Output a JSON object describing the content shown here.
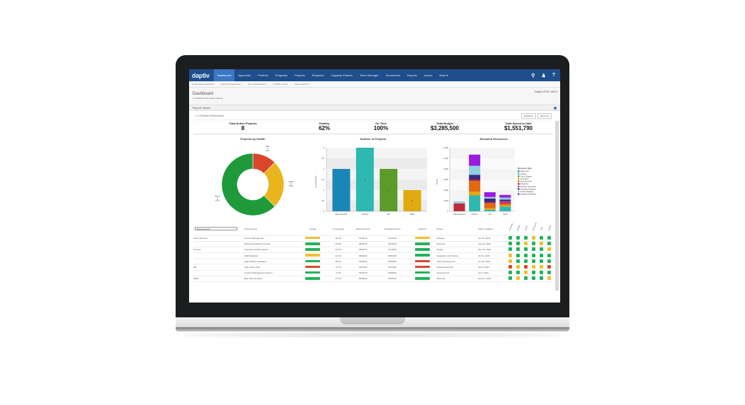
{
  "nav": {
    "logo": "daptiv",
    "items": [
      "Dashboard",
      "Approvals",
      "Portfolio",
      "Programs",
      "Projects",
      "Requests",
      "Capacity Planner",
      "Team Manager",
      "Documents",
      "Reports",
      "Issues",
      "More ▾"
    ],
    "active": "Dashboard",
    "icons": {
      "search": "⚲",
      "user": "♟",
      "help": "?"
    }
  },
  "subnav": [
    "Create New Dashboard",
    "Edit PPD Dashboard",
    "More Dashboards ▾",
    "Publish to Role",
    "Page Options ▾"
  ],
  "header": {
    "title": "Dashboard",
    "breadcrumb": "1. Portfolio Performance Metrics",
    "org": "Daptiv ERG 18/19"
  },
  "report_viewer": {
    "label": "Report Viewer"
  },
  "report": {
    "name": "1 Portfolio Performance",
    "reload_label": "Reload ⟳",
    "view_label": "View in ▾"
  },
  "kpis": [
    {
      "label": "Total Active Projects",
      "value": "8"
    },
    {
      "label": "Healthy",
      "value": "62%"
    },
    {
      "label": "On Time",
      "value": "100%"
    },
    {
      "label": "Total Budget",
      "value": "$3,285,500"
    },
    {
      "label": "Total Spend to Date",
      "value": "$1,551,790"
    }
  ],
  "chart_data": [
    {
      "type": "pie",
      "title": "Projects by Health",
      "categories": [
        "Red",
        "Yellow",
        "Green"
      ],
      "values": [
        1,
        2,
        5
      ],
      "percentages": [
        "12%",
        "25%",
        "62%"
      ],
      "colors": [
        "#d9472b",
        "#e8b51c",
        "#1f9a3a"
      ],
      "donut": true
    },
    {
      "type": "bar",
      "title": "Number of Projects",
      "categories": [
        "Client Services",
        "Finance",
        "HR",
        "Sales"
      ],
      "values": [
        2,
        3,
        2,
        1
      ],
      "colors": [
        "#1a86b8",
        "#2db8b0",
        "#5c9a2a",
        "#e0aa10"
      ],
      "ylabel": "# of Projects",
      "yticks": [
        0,
        0.5,
        1,
        1.5,
        2,
        2.5,
        3
      ],
      "ylim": [
        0,
        3
      ],
      "grid": true
    },
    {
      "type": "bar",
      "stacked": true,
      "title": "Allocated Resources",
      "ylabel": "Hours",
      "yticks": [
        0,
        1000,
        2000,
        3000,
        4000,
        5000,
        6000
      ],
      "ylim": [
        0,
        6000
      ],
      "categories": [
        "Client Services",
        "Finance",
        "HR",
        "Sales"
      ],
      "legend_title": "Resource Type",
      "legend_position": "right",
      "series": [
        {
          "name": "Agile Team",
          "color": "#1a86b8",
          "values": [
            0,
            0,
            0,
            0
          ]
        },
        {
          "name": "Analyst",
          "color": "#2db8b0",
          "values": [
            0,
            1500,
            150,
            450
          ]
        },
        {
          "name": "Client Support",
          "color": "#5c9a2a",
          "values": [
            0,
            0,
            0,
            0
          ]
        },
        {
          "name": "Contractor",
          "color": "#e0aa10",
          "values": [
            0,
            350,
            150,
            120
          ]
        },
        {
          "name": "Data Scientist",
          "color": "#e06a10",
          "values": [
            0,
            1000,
            450,
            150
          ]
        },
        {
          "name": "Designers",
          "color": "#c02a3a",
          "values": [
            750,
            150,
            100,
            120
          ]
        },
        {
          "name": "Portfolio Technician",
          "color": "#b03aa0",
          "values": [
            0,
            0,
            0,
            130
          ]
        },
        {
          "name": "Hardware Engineer",
          "color": "#3a2a80",
          "values": [
            0,
            450,
            350,
            130
          ]
        },
        {
          "name": "Project Manager",
          "color": "#8fd0e0",
          "values": [
            200,
            850,
            150,
            200
          ]
        },
        {
          "name": "Software Developer",
          "color": "#9a1ae0",
          "values": [
            0,
            1050,
            450,
            250
          ]
        }
      ]
    }
  ],
  "table": {
    "filter_value": "Business Unit",
    "columns": [
      "Project Name",
      "Health",
      "% Complete",
      "Planned Finish",
      "Scheduled Finish",
      "Variance",
      "Phase",
      "Status Updated"
    ],
    "status_columns": [
      "Schedule",
      "Budget",
      "Scope",
      "Resources",
      "Risk",
      "Quality"
    ],
    "groups": [
      {
        "name": "Client Services",
        "row": 0
      },
      {
        "name": "Finance",
        "row": 2
      },
      {
        "name": "HR",
        "row": 5
      },
      {
        "name": "Sales",
        "row": 7
      }
    ],
    "rows": [
      {
        "group": "Client Services",
        "project": "Vendor Management",
        "health": "yellow",
        "complete": "39.4%",
        "planned": "07/26/19",
        "scheduled": "07/25/19",
        "variance": "yellow",
        "phase": "Release",
        "updated": "Jun 10, 2019",
        "status": [
          "g",
          "g",
          "g",
          "y",
          "g",
          "g"
        ]
      },
      {
        "group": "",
        "project": "Business Relations Process",
        "health": "green",
        "complete": "52.8%",
        "planned": "08/26/19",
        "scheduled": "08/18/19",
        "variance": "green",
        "phase": "Planning",
        "updated": "Aug 21, 2019",
        "status": [
          "g",
          "g",
          "y",
          "g",
          "y",
          "g"
        ]
      },
      {
        "group": "Finance",
        "project": "Cascade Interface Model",
        "health": "green",
        "complete": "62.5%",
        "planned": "09/02/19",
        "scheduled": "07/18/19",
        "variance": "green",
        "phase": "Design",
        "updated": "Nov 20, 2019",
        "status": [
          "g",
          "g",
          "g",
          "g",
          "g",
          "y"
        ]
      },
      {
        "group": "",
        "project": "CRM Migration",
        "health": "yellow",
        "complete": "31.4%",
        "planned": "09/04/20",
        "scheduled": "08/23/20",
        "variance": "green",
        "phase": "Integration and Testing",
        "updated": "Jul 01, 2019",
        "status": [
          "y",
          "g",
          "g",
          "g",
          "g",
          "g"
        ]
      },
      {
        "group": "",
        "project": "Agile Mobile Integration",
        "health": "green",
        "complete": "39.4%",
        "planned": "03/03/20",
        "scheduled": "03/06/20",
        "variance": "red",
        "phase": "Sprint Development",
        "updated": "Apr 09, 2019",
        "status": [
          "y",
          "g",
          "g",
          "g",
          "g",
          "g"
        ]
      },
      {
        "group": "HR",
        "project": "Agile Voice Chat",
        "health": "red",
        "complete": "71.7%",
        "planned": "01/13/20",
        "scheduled": "03/14/20",
        "variance": "red",
        "phase": "Detailed Planning",
        "updated": "Jan 8, 2019",
        "status": [
          "r",
          "y",
          "r",
          "y",
          "y",
          "r"
        ]
      },
      {
        "group": "",
        "project": "Content Management System",
        "health": "green",
        "complete": "4.7%",
        "planned": "09/24/19",
        "scheduled": "09/28/19",
        "variance": "green",
        "phase": "Development",
        "updated": "Jul 2, 2019",
        "status": [
          "g",
          "g",
          "y",
          "g",
          "g",
          "g"
        ]
      },
      {
        "group": "Sales",
        "project": "Blue Sky Someday",
        "health": "green",
        "complete": "64.4%",
        "planned": "05/08/20",
        "scheduled": "05/06/20",
        "variance": "green",
        "phase": "Planning",
        "updated": "Aug 21, 2019",
        "status": [
          "g",
          "y",
          "g",
          "g",
          "g",
          "y"
        ]
      }
    ]
  },
  "colors": {
    "nav_bg": "#1f4e8c",
    "nav_active": "#3b78c4",
    "green": "#21b35a",
    "yellow": "#efc02a",
    "red": "#d9472b"
  }
}
